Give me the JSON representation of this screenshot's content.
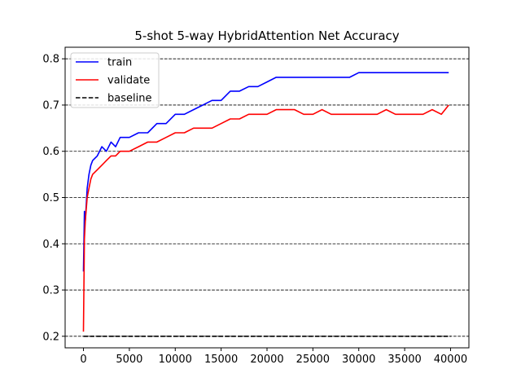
{
  "chart_data": {
    "type": "line",
    "title": "5-shot 5-way HybridAttention Net Accuracy",
    "xlabel": "",
    "ylabel": "",
    "xlim": [
      -2000,
      42000
    ],
    "ylim": [
      0.175,
      0.825
    ],
    "xticks": [
      0,
      5000,
      10000,
      15000,
      20000,
      25000,
      30000,
      35000,
      40000
    ],
    "yticks": [
      0.2,
      0.3,
      0.4,
      0.5,
      0.6,
      0.7,
      0.8
    ],
    "grid": "horizontal dashed",
    "legend_position": "top-left",
    "series": [
      {
        "name": "train",
        "color": "#0000ff",
        "style": "solid",
        "x": [
          0,
          100,
          200,
          400,
          600,
          800,
          1000,
          1500,
          2000,
          2500,
          3000,
          3500,
          4000,
          5000,
          6000,
          7000,
          8000,
          9000,
          10000,
          11000,
          12000,
          13000,
          14000,
          15000,
          16000,
          17000,
          18000,
          19000,
          20000,
          21000,
          22000,
          23000,
          24000,
          25000,
          26000,
          27000,
          28000,
          29000,
          30000,
          31000,
          32000,
          33000,
          34000,
          35000,
          36000,
          37000,
          38000,
          39000,
          39800
        ],
        "y": [
          0.34,
          0.47,
          0.45,
          0.52,
          0.55,
          0.57,
          0.58,
          0.59,
          0.61,
          0.6,
          0.62,
          0.61,
          0.63,
          0.63,
          0.64,
          0.64,
          0.66,
          0.66,
          0.68,
          0.68,
          0.69,
          0.7,
          0.71,
          0.71,
          0.73,
          0.73,
          0.74,
          0.74,
          0.75,
          0.76,
          0.76,
          0.76,
          0.76,
          0.76,
          0.76,
          0.76,
          0.76,
          0.76,
          0.77,
          0.77,
          0.77,
          0.77,
          0.77,
          0.77,
          0.77,
          0.77,
          0.77,
          0.77,
          0.77
        ]
      },
      {
        "name": "validate",
        "color": "#ff0000",
        "style": "solid",
        "x": [
          0,
          100,
          200,
          400,
          600,
          800,
          1000,
          1500,
          2000,
          2500,
          3000,
          3500,
          4000,
          5000,
          6000,
          7000,
          8000,
          9000,
          10000,
          11000,
          12000,
          13000,
          14000,
          15000,
          16000,
          17000,
          18000,
          19000,
          20000,
          21000,
          22000,
          23000,
          24000,
          25000,
          26000,
          27000,
          28000,
          29000,
          30000,
          31000,
          32000,
          33000,
          34000,
          35000,
          36000,
          37000,
          38000,
          39000,
          39800
        ],
        "y": [
          0.21,
          0.41,
          0.45,
          0.5,
          0.52,
          0.54,
          0.55,
          0.56,
          0.57,
          0.58,
          0.59,
          0.59,
          0.6,
          0.6,
          0.61,
          0.62,
          0.62,
          0.63,
          0.64,
          0.64,
          0.65,
          0.65,
          0.65,
          0.66,
          0.67,
          0.67,
          0.68,
          0.68,
          0.68,
          0.69,
          0.69,
          0.69,
          0.68,
          0.68,
          0.69,
          0.68,
          0.68,
          0.68,
          0.68,
          0.68,
          0.68,
          0.69,
          0.68,
          0.68,
          0.68,
          0.68,
          0.69,
          0.68,
          0.7
        ]
      },
      {
        "name": "baseline",
        "color": "#000000",
        "style": "dashed",
        "x": [
          0,
          40000
        ],
        "y": [
          0.2,
          0.2
        ]
      }
    ]
  }
}
